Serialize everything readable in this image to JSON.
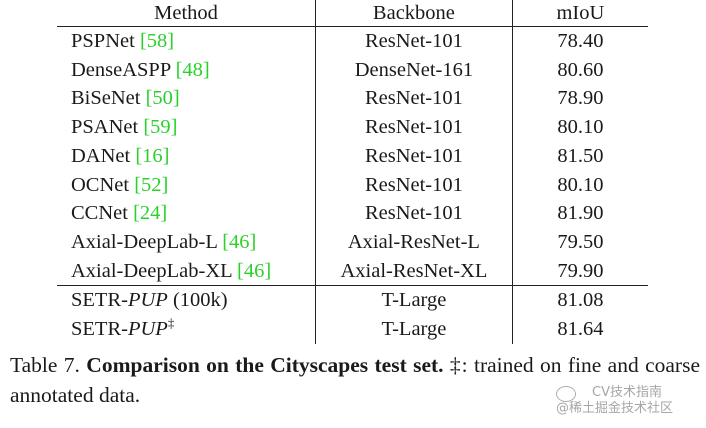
{
  "table": {
    "headers": {
      "method": "Method",
      "backbone": "Backbone",
      "miou": "mIoU"
    },
    "rows": [
      {
        "method": "PSPNet",
        "ref": "[58]",
        "backbone": "ResNet-101",
        "miou": "78.40"
      },
      {
        "method": "DenseASPP",
        "ref": "[48]",
        "backbone": "DenseNet-161",
        "miou": "80.60"
      },
      {
        "method": "BiSeNet",
        "ref": "[50]",
        "backbone": "ResNet-101",
        "miou": "78.90"
      },
      {
        "method": "PSANet",
        "ref": "[59]",
        "backbone": "ResNet-101",
        "miou": "80.10"
      },
      {
        "method": "DANet",
        "ref": "[16]",
        "backbone": "ResNet-101",
        "miou": "81.50"
      },
      {
        "method": "OCNet",
        "ref": "[52]",
        "backbone": "ResNet-101",
        "miou": "80.10"
      },
      {
        "method": "CCNet",
        "ref": "[24]",
        "backbone": "ResNet-101",
        "miou": "81.90"
      },
      {
        "method": "Axial-DeepLab-L",
        "ref": "[46]",
        "backbone": "Axial-ResNet-L",
        "miou": "79.50"
      },
      {
        "method": "Axial-DeepLab-XL",
        "ref": "[46]",
        "backbone": "Axial-ResNet-XL",
        "miou": "79.90"
      }
    ],
    "setr_rows": [
      {
        "method_prefix": "SETR-",
        "method_italic": "PUP",
        "method_suffix": " (100k)",
        "backbone": "T-Large",
        "miou": "81.08"
      },
      {
        "method_prefix": "SETR-",
        "method_italic": "PUP",
        "method_sup": "‡",
        "backbone": "T-Large",
        "miou": "81.64"
      }
    ]
  },
  "caption": {
    "label": "Table 7.",
    "bold": "Comparison on the Cityscapes test set.",
    "rest": "‡: trained on fine and coarse annotated data."
  },
  "watermark": {
    "line1": "CV技术指南",
    "line2": "@稀土掘金技术社区",
    "icon": "wechat-icon"
  }
}
